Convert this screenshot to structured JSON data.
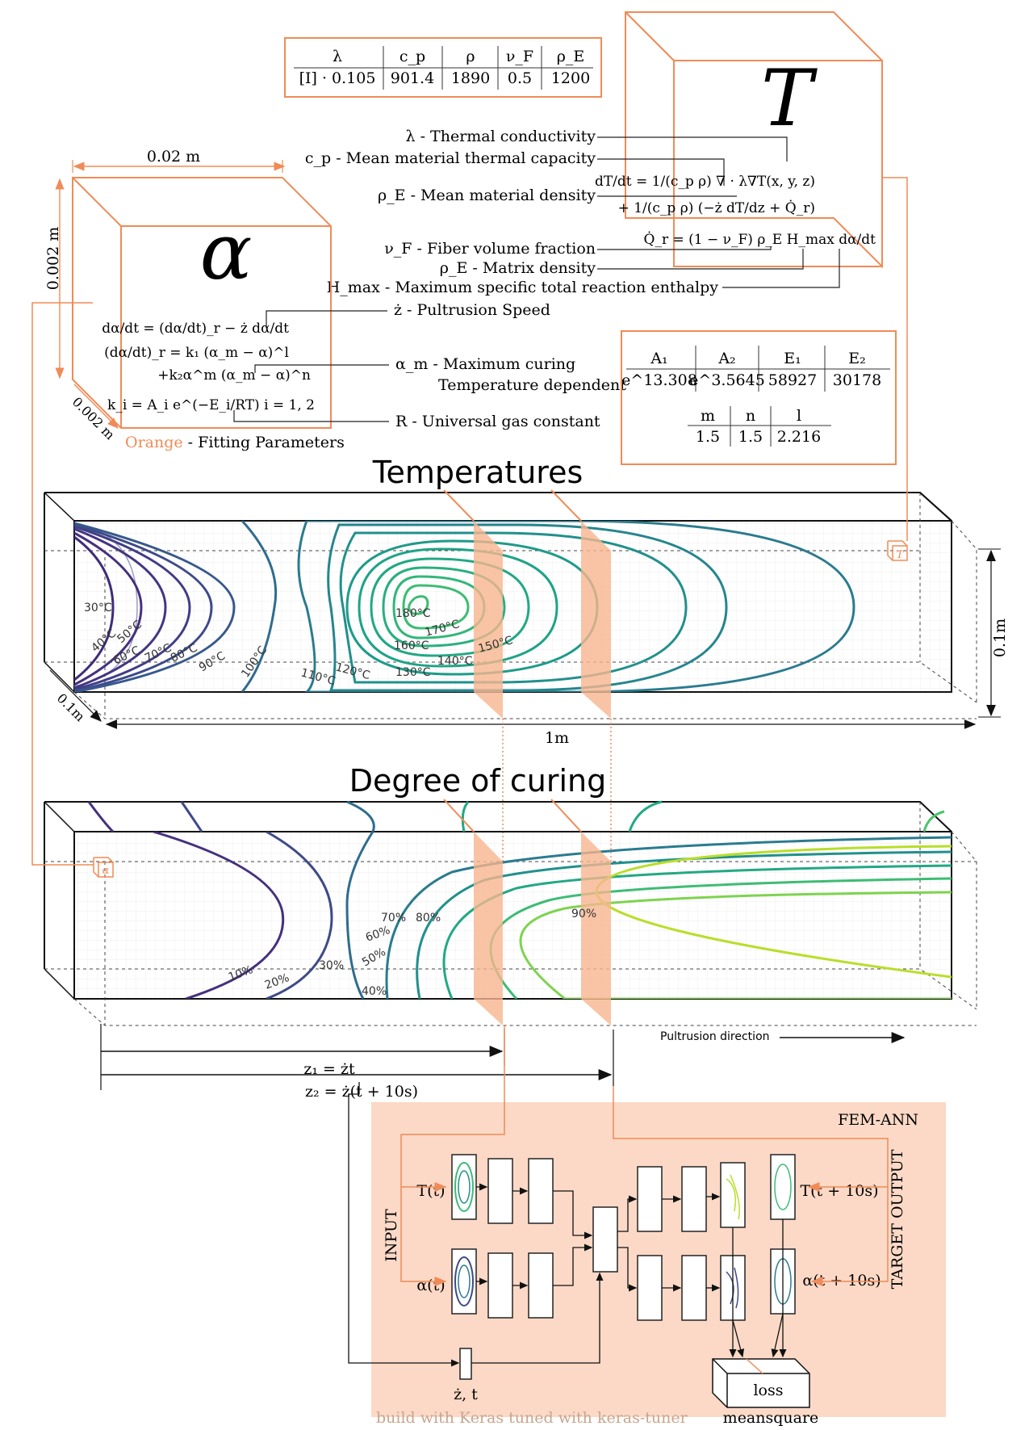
{
  "fem_ann": {
    "title": "FEM-ANN",
    "input_label": "INPUT",
    "target_output_label": "TARGET OUTPUT",
    "inputs": [
      "T(t)",
      "α(t)"
    ],
    "outputs": [
      "T(t + 10s)",
      "α(t + 10s)"
    ],
    "aux_input": "ż, t",
    "loss": "loss",
    "loss_type": "meansquare",
    "footer": "build with Keras tuned with keras-tuner"
  },
  "temperature_box": {
    "symbol": "T",
    "table": {
      "headers": [
        "λ",
        "c_p",
        "ρ",
        "ν_F",
        "ρ_E"
      ],
      "values": [
        "[I] · 0.105",
        "901.4",
        "1890",
        "0.5",
        "1200"
      ]
    },
    "descriptions": [
      "λ - Thermal conductivity",
      "c_p - Mean material thermal capacity",
      "ρ_E - Mean material density",
      "ν_F - Fiber volume fraction",
      "ρ_E - Matrix density",
      "H_max - Maximum specific total reaction enthalpy"
    ],
    "equations": [
      "dT/dt = 1/(c_p ρ) ∇ · λ∇T(x, y, z)",
      "+ 1/(c_p ρ) (−ż dT/dz + Q̇_r)",
      "Q̇_r = (1 − ν_F) ρ_E H_max dα/dt"
    ]
  },
  "alpha_box": {
    "symbol": "α",
    "dim_width": "0.02 m",
    "dim_height": "0.002 m",
    "dim_depth": "0.002 m",
    "equations": [
      "dα/dt = (dα/dt)_r − ż dα/dt",
      "(dα/dt)_r = k₁ (α_m − α)^l",
      "+k₂α^m (α_m − α)^n",
      "k_i = A_i e^(−E_i/RT)   i = 1, 2"
    ],
    "descriptions": [
      "ż - Pultrusion Speed",
      "α_m - Maximum curing",
      "Temperature dependent",
      "R - Universal gas constant"
    ],
    "legend_orange": "Orange",
    "legend_rest": " - Fitting Parameters"
  },
  "kinetics_table": {
    "headers1": [
      "A₁",
      "A₂",
      "E₁",
      "E₂"
    ],
    "values1": [
      "e^13.308",
      "e^3.5645",
      "58927",
      "30178"
    ],
    "headers2": [
      "m",
      "n",
      "l"
    ],
    "values2": [
      "1.5",
      "1.5",
      "2.216"
    ]
  },
  "temperatures": {
    "title": "Temperatures",
    "dim_height": "0.1m",
    "dim_depth": "0.1m",
    "dim_length": "1m",
    "labels": [
      "30°C",
      "40°C",
      "50°C",
      "60°C",
      "70°C",
      "80°C",
      "90°C",
      "100°C",
      "110°C",
      "120°C",
      "130°C",
      "140°C",
      "150°C",
      "160°C",
      "170°C",
      "180°C"
    ]
  },
  "curing": {
    "title": "Degree of curing",
    "labels": [
      "10%",
      "20%",
      "30%",
      "40%",
      "50%",
      "60%",
      "70%",
      "80%",
      "90%"
    ],
    "z1": "z₁ = żt",
    "z2": "z₂ = ż(t + 10s)",
    "direction": "Pultrusion direction"
  },
  "colors": {
    "accent": "#f08b57",
    "fill_accent": "#fbd9c6"
  }
}
